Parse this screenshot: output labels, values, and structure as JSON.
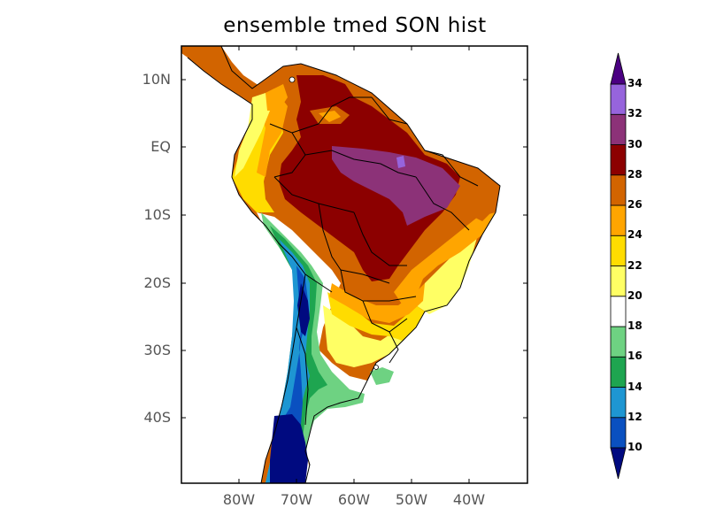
{
  "title": "ensemble tmed SON hist",
  "map": {
    "lat_labels": [
      "10N",
      "EQ",
      "10S",
      "20S",
      "30S",
      "40S"
    ],
    "lon_labels": [
      "80W",
      "70W",
      "60W",
      "50W",
      "40W"
    ],
    "lon_range": [
      -90,
      -30
    ],
    "lat_range": [
      -50,
      15
    ]
  },
  "colorbar": {
    "levels": [
      "10",
      "12",
      "14",
      "16",
      "18",
      "20",
      "22",
      "24",
      "26",
      "28",
      "30",
      "32",
      "34"
    ],
    "colors": [
      "#000a80",
      "#0a50c0",
      "#1e96d2",
      "#1ea550",
      "#6ed282",
      "#ffffff",
      "#ffff64",
      "#ffdc00",
      "#ffa500",
      "#d26400",
      "#8c0000",
      "#8c3278",
      "#9664dc",
      "#4b0082"
    ]
  },
  "colors": {
    "border": "#000000",
    "tick_label": "#555555"
  }
}
